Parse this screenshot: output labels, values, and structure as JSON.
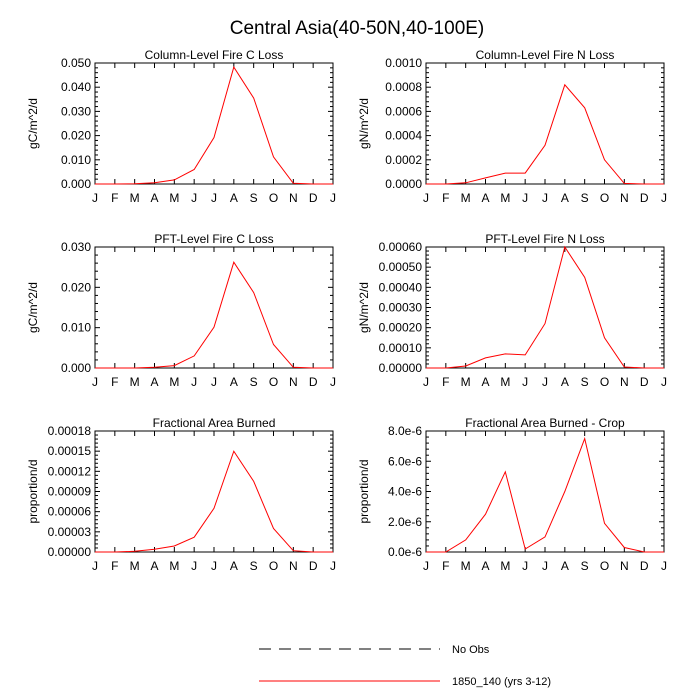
{
  "figure_title": "Central Asia(40-50N,40-100E)",
  "legend": {
    "entries": [
      {
        "label": "No Obs",
        "color": "#000000",
        "dashed": true
      },
      {
        "label": "1850_140 (yrs 3-12)",
        "color": "#ff0000",
        "dashed": false
      }
    ]
  },
  "chart_data": [
    {
      "type": "line",
      "title": "Column-Level Fire C Loss",
      "ylabel": "gC/m^2/d",
      "xlabel": "",
      "categories": [
        "J",
        "F",
        "M",
        "A",
        "M",
        "J",
        "J",
        "A",
        "S",
        "O",
        "N",
        "D",
        "J"
      ],
      "ylim": [
        0,
        0.05
      ],
      "yticks": [
        "0.000",
        "0.010",
        "0.020",
        "0.030",
        "0.040",
        "0.050"
      ],
      "series": [
        {
          "color": "#ff0000",
          "values": [
            0.0,
            0.0,
            0.0001,
            0.0005,
            0.0017,
            0.006,
            0.0192,
            0.0483,
            0.0355,
            0.0112,
            0.0003,
            0.0,
            0.0
          ]
        }
      ]
    },
    {
      "type": "line",
      "title": "Column-Level Fire N Loss",
      "ylabel": "gN/m^2/d",
      "xlabel": "",
      "categories": [
        "J",
        "F",
        "M",
        "A",
        "M",
        "J",
        "J",
        "A",
        "S",
        "O",
        "N",
        "D",
        "J"
      ],
      "ylim": [
        0,
        0.001
      ],
      "yticks": [
        "0.0000",
        "0.0002",
        "0.0004",
        "0.0006",
        "0.0008",
        "0.0010"
      ],
      "series": [
        {
          "color": "#ff0000",
          "values": [
            0.0,
            0.0,
            1e-05,
            5e-05,
            9e-05,
            9e-05,
            0.00032,
            0.00082,
            0.00063,
            0.0002,
            5e-06,
            0.0,
            0.0
          ]
        }
      ]
    },
    {
      "type": "line",
      "title": "PFT-Level Fire C Loss",
      "ylabel": "gC/m^2/d",
      "xlabel": "",
      "categories": [
        "J",
        "F",
        "M",
        "A",
        "M",
        "J",
        "J",
        "A",
        "S",
        "O",
        "N",
        "D",
        "J"
      ],
      "ylim": [
        0,
        0.035
      ],
      "yticks": [
        "0.000",
        "0.010",
        "0.020",
        "0.030"
      ],
      "series": [
        {
          "color": "#ff0000",
          "values": [
            0.0,
            0.0,
            0.0,
            0.0002,
            0.0007,
            0.0035,
            0.0118,
            0.0306,
            0.0218,
            0.0068,
            0.0002,
            0.0,
            0.0
          ]
        }
      ]
    },
    {
      "type": "line",
      "title": "PFT-Level Fire N Loss",
      "ylabel": "gN/m^2/d",
      "xlabel": "",
      "categories": [
        "J",
        "F",
        "M",
        "A",
        "M",
        "J",
        "J",
        "A",
        "S",
        "O",
        "N",
        "D",
        "J"
      ],
      "ylim": [
        0,
        0.0006
      ],
      "yticks": [
        "0.00000",
        "0.00010",
        "0.00020",
        "0.00030",
        "0.00040",
        "0.00050",
        "0.00060"
      ],
      "series": [
        {
          "color": "#ff0000",
          "values": [
            0.0,
            0.0,
            1e-05,
            5e-05,
            7e-05,
            6.5e-05,
            0.00022,
            0.0006,
            0.00045,
            0.00015,
            5e-06,
            0.0,
            0.0
          ]
        }
      ]
    },
    {
      "type": "line",
      "title": "Fractional Area Burned",
      "ylabel": "proportion/d",
      "xlabel": "",
      "categories": [
        "J",
        "F",
        "M",
        "A",
        "M",
        "J",
        "J",
        "A",
        "S",
        "O",
        "N",
        "D",
        "J"
      ],
      "ylim": [
        0,
        0.00018
      ],
      "yticks": [
        "0.00000",
        "0.00003",
        "0.00006",
        "0.00009",
        "0.00012",
        "0.00015",
        "0.00018"
      ],
      "series": [
        {
          "color": "#ff0000",
          "values": [
            0.0,
            0.0,
            1e-06,
            4e-06,
            9e-06,
            2.2e-05,
            6.5e-05,
            0.00015,
            0.000105,
            3.5e-05,
            2e-06,
            0.0,
            0.0
          ]
        }
      ]
    },
    {
      "type": "line",
      "title": "Fractional Area Burned - Crop",
      "ylabel": "proportion/d",
      "xlabel": "",
      "categories": [
        "J",
        "F",
        "M",
        "A",
        "M",
        "J",
        "J",
        "A",
        "S",
        "O",
        "N",
        "D",
        "J"
      ],
      "ylim": [
        0,
        8e-06
      ],
      "yticks": [
        "0.0e-6",
        "2.0e-6",
        "4.0e-6",
        "6.0e-6",
        "8.0e-6"
      ],
      "series": [
        {
          "color": "#ff0000",
          "values": [
            0.0,
            0.0,
            8e-07,
            2.5e-06,
            5.3e-06,
            2e-07,
            1e-06,
            4e-06,
            7.5e-06,
            1.9e-06,
            3e-07,
            0.0,
            0.0
          ]
        }
      ]
    }
  ]
}
